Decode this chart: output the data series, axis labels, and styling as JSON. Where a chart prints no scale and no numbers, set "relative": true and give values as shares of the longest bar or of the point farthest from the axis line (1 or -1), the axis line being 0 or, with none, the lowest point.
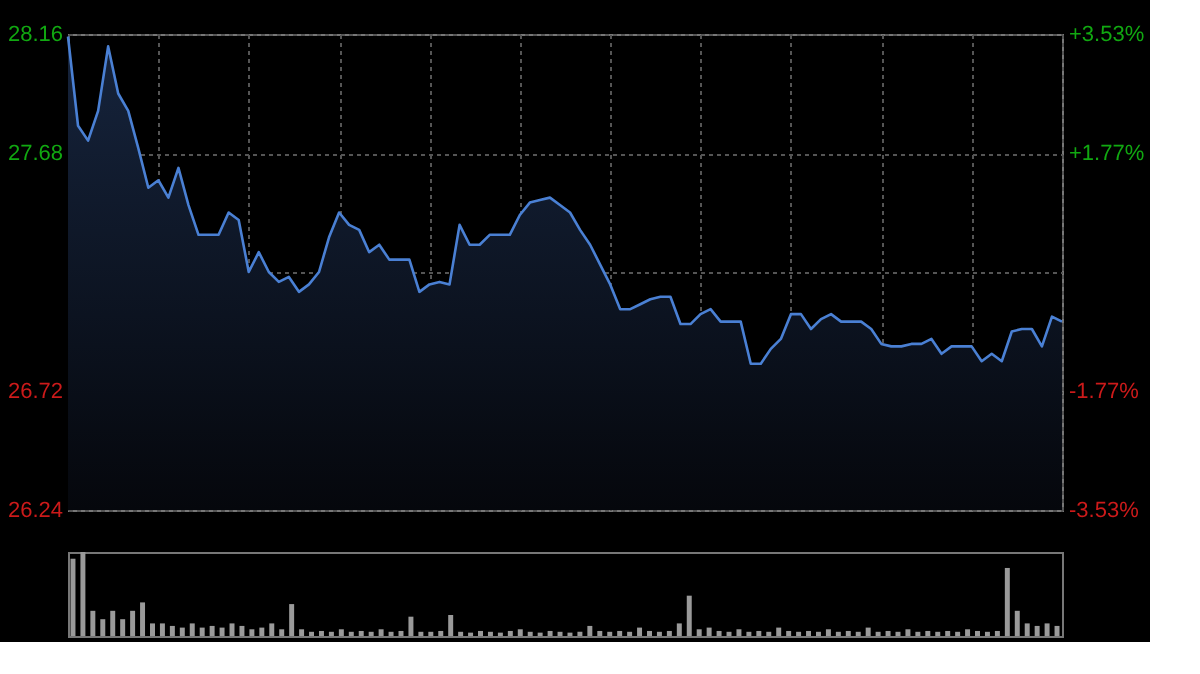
{
  "chart_data": [
    {
      "type": "area",
      "categories": [
        null,
        null,
        null,
        null,
        null,
        null,
        null,
        null,
        null,
        null,
        null,
        null,
        null,
        null,
        null,
        null,
        null,
        null,
        null,
        null,
        null,
        null,
        null,
        null,
        null,
        null,
        null,
        null,
        null,
        null,
        null,
        null,
        null,
        null,
        null,
        null,
        null,
        null,
        null,
        null,
        null,
        null,
        null,
        null,
        null,
        null,
        null,
        null,
        null,
        null,
        null,
        null,
        null,
        null,
        null,
        null,
        null,
        null,
        null,
        null,
        null,
        null,
        null,
        null,
        null,
        null,
        null,
        null,
        null,
        null,
        null,
        null,
        null,
        null,
        null,
        null,
        null,
        null,
        null,
        null,
        null,
        null,
        null,
        null,
        null,
        null,
        null,
        null,
        null,
        null,
        null,
        null,
        null,
        null,
        null,
        null,
        null,
        null,
        null,
        null
      ],
      "series": [
        {
          "color": "#4a80d4",
          "values": [
            28.15,
            27.79,
            27.73,
            27.85,
            28.11,
            27.92,
            27.85,
            27.7,
            27.54,
            27.57,
            27.5,
            27.62,
            27.47,
            27.35,
            27.35,
            27.35,
            27.44,
            27.41,
            27.2,
            27.28,
            27.2,
            27.16,
            27.18,
            27.12,
            27.15,
            27.2,
            27.34,
            27.44,
            27.39,
            27.37,
            27.28,
            27.31,
            27.25,
            27.25,
            27.25,
            27.12,
            27.15,
            27.16,
            27.15,
            27.39,
            27.31,
            27.31,
            27.35,
            27.35,
            27.35,
            27.43,
            27.48,
            27.49,
            27.5,
            27.47,
            27.44,
            27.37,
            27.31,
            27.23,
            27.15,
            27.05,
            27.05,
            27.07,
            27.09,
            27.1,
            27.1,
            26.99,
            26.99,
            27.03,
            27.05,
            27.0,
            27.0,
            27.0,
            26.83,
            26.83,
            26.89,
            26.93,
            27.03,
            27.03,
            26.97,
            27.01,
            27.03,
            27.0,
            27.0,
            27.0,
            26.97,
            26.91,
            26.9,
            26.9,
            26.91,
            26.91,
            26.93,
            26.87,
            26.9,
            26.9,
            26.9,
            26.84,
            26.87,
            26.84,
            26.96,
            26.97,
            26.97,
            26.9,
            27.02,
            27.0
          ]
        }
      ],
      "ylim": [
        26.24,
        28.16
      ],
      "yticks": [
        28.16,
        27.68,
        {
          "value": 27.2,
          "label": null
        },
        26.72,
        26.24
      ],
      "y2lim": [
        -3.53,
        3.53
      ],
      "y2ticks": [
        {
          "value": 3.53,
          "label": "+3.53%"
        },
        {
          "value": 1.77,
          "label": "+1.77%"
        },
        {
          "value": 0,
          "label": null
        },
        {
          "value": -1.77,
          "label": "-1.77%"
        },
        {
          "value": -3.53,
          "label": "-3.53%"
        }
      ],
      "grid": true
    },
    {
      "type": "bar",
      "relative": true,
      "categories": [
        null,
        null,
        null,
        null,
        null,
        null,
        null,
        null,
        null,
        null,
        null,
        null,
        null,
        null,
        null,
        null,
        null,
        null,
        null,
        null,
        null,
        null,
        null,
        null,
        null,
        null,
        null,
        null,
        null,
        null,
        null,
        null,
        null,
        null,
        null,
        null,
        null,
        null,
        null,
        null,
        null,
        null,
        null,
        null,
        null,
        null,
        null,
        null,
        null,
        null,
        null,
        null,
        null,
        null,
        null,
        null,
        null,
        null,
        null,
        null,
        null,
        null,
        null,
        null,
        null,
        null,
        null,
        null,
        null,
        null,
        null,
        null,
        null,
        null,
        null,
        null,
        null,
        null,
        null,
        null,
        null,
        null,
        null,
        null,
        null,
        null,
        null,
        null,
        null,
        null,
        null,
        null,
        null,
        null,
        null,
        null,
        null,
        null,
        null,
        null
      ],
      "series": [
        {
          "color": "#9a9a9a",
          "values": [
            0.92,
            1.0,
            0.3,
            0.2,
            0.3,
            0.2,
            0.3,
            0.4,
            0.15,
            0.15,
            0.12,
            0.1,
            0.15,
            0.1,
            0.12,
            0.1,
            0.15,
            0.12,
            0.08,
            0.1,
            0.15,
            0.08,
            0.38,
            0.08,
            0.05,
            0.06,
            0.05,
            0.08,
            0.05,
            0.06,
            0.05,
            0.08,
            0.05,
            0.06,
            0.23,
            0.05,
            0.05,
            0.06,
            0.25,
            0.05,
            0.04,
            0.06,
            0.05,
            0.04,
            0.06,
            0.08,
            0.05,
            0.04,
            0.06,
            0.05,
            0.04,
            0.05,
            0.12,
            0.06,
            0.05,
            0.06,
            0.05,
            0.1,
            0.06,
            0.05,
            0.06,
            0.15,
            0.48,
            0.08,
            0.1,
            0.06,
            0.05,
            0.08,
            0.05,
            0.06,
            0.05,
            0.1,
            0.06,
            0.05,
            0.06,
            0.05,
            0.08,
            0.05,
            0.06,
            0.05,
            0.1,
            0.05,
            0.06,
            0.05,
            0.08,
            0.05,
            0.06,
            0.05,
            0.06,
            0.05,
            0.08,
            0.06,
            0.05,
            0.06,
            0.81,
            0.3,
            0.15,
            0.12,
            0.15,
            0.12
          ]
        }
      ],
      "grid": false
    }
  ]
}
